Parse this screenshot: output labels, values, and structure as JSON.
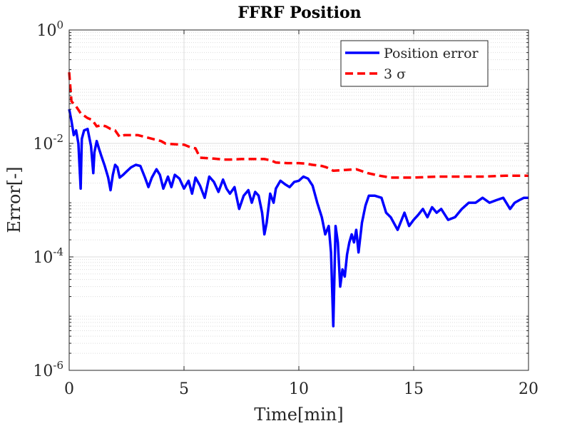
{
  "chart_data": {
    "type": "line",
    "title": "FFRF Position",
    "xlabel": "Time[min]",
    "ylabel": "Error[-]",
    "xlim": [
      0,
      20
    ],
    "ylim": [
      1e-06,
      1
    ],
    "yscale": "log",
    "grid": true,
    "minor_grid": true,
    "legend_position": "top-right",
    "x_ticks": [
      0,
      5,
      10,
      15,
      20
    ],
    "x_tick_labels": [
      "0",
      "5",
      "10",
      "15",
      "20"
    ],
    "y_ticks": [
      1e-06,
      0.0001,
      0.01,
      1
    ],
    "y_tick_labels": [
      {
        "base": "10",
        "exp": "-6"
      },
      {
        "base": "10",
        "exp": "-4"
      },
      {
        "base": "10",
        "exp": "-2"
      },
      {
        "base": "10",
        "exp": "0"
      }
    ],
    "series": [
      {
        "name": "Position error",
        "color": "#0000ff",
        "style": "solid",
        "x": [
          0.0,
          0.1,
          0.2,
          0.3,
          0.4,
          0.5,
          0.55,
          0.65,
          0.8,
          0.95,
          1.05,
          1.1,
          1.2,
          1.3,
          1.4,
          1.55,
          1.7,
          1.8,
          1.9,
          2.0,
          2.1,
          2.2,
          2.35,
          2.5,
          2.7,
          2.9,
          3.1,
          3.3,
          3.45,
          3.6,
          3.8,
          3.95,
          4.1,
          4.3,
          4.45,
          4.6,
          4.8,
          5.0,
          5.2,
          5.35,
          5.5,
          5.7,
          5.9,
          6.1,
          6.3,
          6.5,
          6.7,
          6.85,
          7.0,
          7.2,
          7.4,
          7.6,
          7.8,
          7.95,
          8.1,
          8.25,
          8.4,
          8.5,
          8.6,
          8.75,
          8.9,
          9.0,
          9.2,
          9.4,
          9.6,
          9.8,
          10.0,
          10.2,
          10.4,
          10.6,
          10.8,
          11.0,
          11.15,
          11.3,
          11.4,
          11.5,
          11.6,
          11.7,
          11.8,
          11.9,
          12.0,
          12.1,
          12.2,
          12.3,
          12.4,
          12.5,
          12.6,
          12.75,
          12.9,
          13.05,
          13.3,
          13.6,
          13.8,
          14.0,
          14.3,
          14.6,
          14.8,
          15.0,
          15.2,
          15.4,
          15.6,
          15.8,
          16.0,
          16.2,
          16.5,
          16.8,
          17.1,
          17.4,
          17.7,
          18.0,
          18.3,
          18.6,
          18.9,
          19.2,
          19.4,
          19.6,
          19.8,
          20.0
        ],
        "y": [
          0.04,
          0.025,
          0.014,
          0.017,
          0.01,
          0.0016,
          0.012,
          0.017,
          0.018,
          0.009,
          0.003,
          0.007,
          0.011,
          0.008,
          0.006,
          0.004,
          0.0025,
          0.0015,
          0.0028,
          0.0042,
          0.0038,
          0.0025,
          0.0028,
          0.0032,
          0.0038,
          0.0042,
          0.004,
          0.0025,
          0.0017,
          0.0025,
          0.0035,
          0.0028,
          0.0016,
          0.0026,
          0.0017,
          0.0028,
          0.0024,
          0.0016,
          0.0022,
          0.0013,
          0.0025,
          0.0018,
          0.0011,
          0.0026,
          0.0021,
          0.0014,
          0.0023,
          0.0016,
          0.0013,
          0.0017,
          0.0007,
          0.0012,
          0.0015,
          0.0009,
          0.0014,
          0.0012,
          0.0006,
          0.00025,
          0.0004,
          0.0013,
          0.0009,
          0.0016,
          0.0022,
          0.0019,
          0.0017,
          0.0021,
          0.0022,
          0.0026,
          0.0024,
          0.0018,
          0.0009,
          0.0005,
          0.00025,
          0.00035,
          0.00012,
          6e-06,
          0.00035,
          0.00018,
          3e-05,
          6e-05,
          4.5e-05,
          0.00011,
          0.00018,
          0.00025,
          0.00018,
          0.0003,
          0.00012,
          0.0004,
          0.0008,
          0.0012,
          0.0012,
          0.0011,
          0.0006,
          0.0005,
          0.0003,
          0.0006,
          0.00035,
          0.00045,
          0.00055,
          0.0007,
          0.0005,
          0.00075,
          0.0006,
          0.0007,
          0.00045,
          0.0005,
          0.0007,
          0.0009,
          0.0009,
          0.0011,
          0.0009,
          0.001,
          0.0011,
          0.0007,
          0.0009,
          0.001,
          0.0011,
          0.0011
        ]
      },
      {
        "name": "3 σ",
        "color": "#ff0000",
        "style": "dashed",
        "x": [
          0.0,
          0.1,
          0.2,
          0.3,
          0.5,
          0.8,
          1.0,
          1.2,
          1.4,
          1.6,
          1.8,
          2.0,
          2.2,
          2.4,
          3.0,
          3.3,
          4.0,
          4.2,
          4.6,
          5.0,
          5.3,
          5.5,
          5.7,
          6.0,
          6.3,
          6.7,
          7.0,
          7.5,
          8.0,
          8.5,
          8.8,
          9.0,
          9.5,
          10.0,
          10.3,
          10.6,
          11.0,
          11.2,
          11.5,
          12.0,
          12.5,
          13.0,
          13.5,
          14.0,
          15.0,
          16.0,
          17.0,
          18.0,
          19.0,
          20.0
        ],
        "y": [
          0.18,
          0.055,
          0.05,
          0.045,
          0.034,
          0.028,
          0.026,
          0.02,
          0.021,
          0.02,
          0.018,
          0.017,
          0.013,
          0.014,
          0.014,
          0.013,
          0.011,
          0.0099,
          0.0097,
          0.0095,
          0.0085,
          0.0082,
          0.0056,
          0.0055,
          0.0054,
          0.0052,
          0.0052,
          0.0053,
          0.0053,
          0.0053,
          0.005,
          0.0046,
          0.0045,
          0.0045,
          0.0044,
          0.0042,
          0.004,
          0.0038,
          0.0033,
          0.0034,
          0.0035,
          0.003,
          0.0027,
          0.0025,
          0.0025,
          0.0026,
          0.0026,
          0.0026,
          0.0027,
          0.0027
        ]
      }
    ]
  }
}
